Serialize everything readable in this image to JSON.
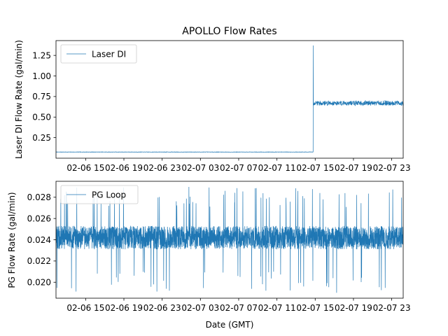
{
  "colors": {
    "series": "#1f77b4",
    "axes": "#000000",
    "legend_border": "#cccccc",
    "background": "#ffffff"
  },
  "chart_data": [
    {
      "type": "line",
      "title": "APOLLO Flow Rates",
      "xlabel": "",
      "ylabel": "Laser DI Flow Rate (gal/min)",
      "x_unit": "hours since 2006-02-06 00:00 GMT",
      "xlim": [
        11.9,
        48.2
      ],
      "ylim": [
        0.0,
        1.43
      ],
      "xticks": [
        15,
        19,
        23,
        27,
        31,
        35,
        39,
        43,
        47
      ],
      "xtick_labels": [
        "02-06 15",
        "02-06 19",
        "02-06 23",
        "02-07 03",
        "02-07 07",
        "02-07 11",
        "02-07 15",
        "02-07 19",
        "02-07 23"
      ],
      "yticks": [
        0.25,
        0.5,
        0.75,
        1.0,
        1.25
      ],
      "ytick_labels": [
        "0.25",
        "0.50",
        "0.75",
        "1.00",
        "1.25"
      ],
      "legend": {
        "label": "Laser DI",
        "position": "upper left"
      },
      "series": [
        {
          "name": "Laser DI",
          "segments": [
            {
              "x_start": 11.9,
              "x_end": 38.8,
              "level": 0.075,
              "noise": 0.002
            },
            {
              "x_start": 38.8,
              "x_end": 38.81,
              "level": 1.37,
              "noise": 0
            },
            {
              "x_start": 38.81,
              "x_end": 48.2,
              "level": 0.67,
              "noise": 0.03
            }
          ]
        }
      ]
    },
    {
      "type": "line",
      "title": "",
      "xlabel": "Date (GMT)",
      "ylabel": "PG Flow Rate (gal/min)",
      "x_unit": "hours since 2006-02-06 00:00 GMT",
      "xlim": [
        11.9,
        48.2
      ],
      "ylim": [
        0.0185,
        0.0295
      ],
      "xticks": [
        15,
        19,
        23,
        27,
        31,
        35,
        39,
        43,
        47
      ],
      "xtick_labels": [
        "02-06 15",
        "02-06 19",
        "02-06 23",
        "02-07 03",
        "02-07 07",
        "02-07 11",
        "02-07 15",
        "02-07 19",
        "02-07 23"
      ],
      "yticks": [
        0.02,
        0.022,
        0.024,
        0.026,
        0.028
      ],
      "ytick_labels": [
        "0.020",
        "0.022",
        "0.024",
        "0.026",
        "0.028"
      ],
      "legend": {
        "label": "PG Loop",
        "position": "upper left"
      },
      "series": [
        {
          "name": "PG Loop",
          "segments": [
            {
              "x_start": 11.9,
              "x_end": 48.2,
              "level": 0.0242,
              "noise": 0.0011,
              "min": 0.019,
              "max": 0.029
            }
          ]
        }
      ]
    }
  ]
}
